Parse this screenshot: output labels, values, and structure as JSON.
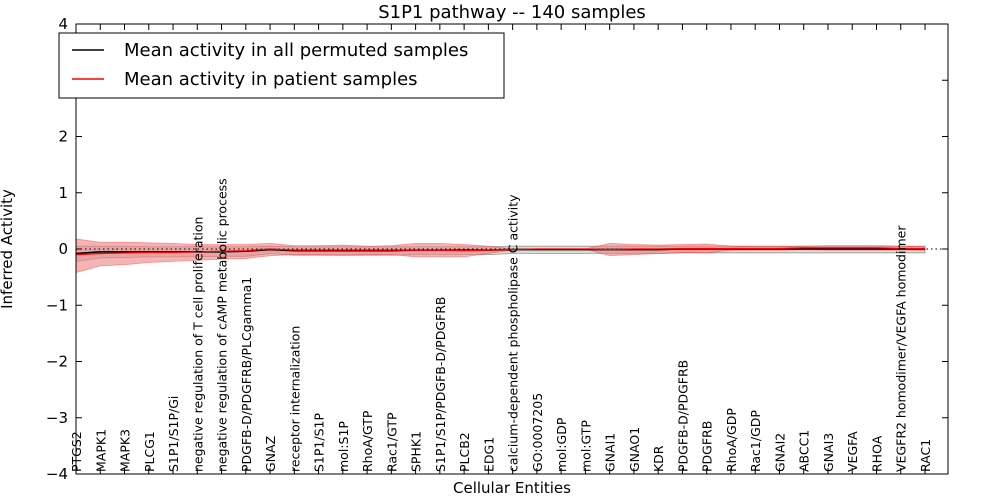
{
  "chart_data": {
    "type": "line",
    "title": "S1P1 pathway -- 140 samples",
    "xlabel": "Cellular Entities",
    "ylabel": "Inferred Activity",
    "ylim": [
      -4,
      4
    ],
    "yticks": [
      -4,
      -3,
      -2,
      -1,
      0,
      1,
      2,
      3,
      4
    ],
    "ytick_labels": [
      "−4",
      "−3",
      "−2",
      "−1",
      "0",
      "1",
      "2",
      "3",
      "4"
    ],
    "grid": false,
    "legend_position": "top-left",
    "categories": [
      "PTGS2",
      "MAPK1",
      "MAPK3",
      "PLCG1",
      "S1P1/S1P/Gi",
      "negative regulation of T cell proliferation",
      "negative regulation of cAMP metabolic process",
      "PDGFB-D/PDGFRB/PLCgamma1",
      "GNAZ",
      "receptor internalization",
      "S1P1/S1P",
      "mol:S1P",
      "RhoA/GTP",
      "Rac1/GTP",
      "SPHK1",
      "S1P1/S1P/PDGFB-D/PDGFRB",
      "PLCB2",
      "EDG1",
      "calcium-dependent phospholipase C activity",
      "GO:0007205",
      "mol:GDP",
      "mol:GTP",
      "GNAI1",
      "GNAO1",
      "KDR",
      "PDGFB-D/PDGFRB",
      "PDGFRB",
      "RhoA/GDP",
      "Rac1/GDP",
      "GNAI2",
      "ABCC1",
      "GNAI3",
      "VEGFA",
      "RHOA",
      "VEGFR2 homodimer/VEGFA homodimer",
      "RAC1"
    ],
    "series": [
      {
        "name": "Mean activity in all permuted samples",
        "color": "#000000",
        "band_color": "#bbbbbb",
        "values": [
          -0.08,
          -0.05,
          -0.05,
          -0.05,
          -0.05,
          -0.05,
          -0.05,
          -0.04,
          -0.01,
          -0.03,
          -0.03,
          -0.03,
          -0.03,
          -0.03,
          -0.02,
          -0.02,
          -0.02,
          -0.02,
          -0.01,
          -0.01,
          -0.01,
          -0.01,
          -0.01,
          -0.01,
          -0.01,
          0.0,
          0.0,
          0.0,
          0.0,
          0.0,
          0.0,
          0.0,
          0.0,
          0.0,
          0.0,
          0.0
        ],
        "upper": [
          0.05,
          0.05,
          0.05,
          0.04,
          0.04,
          0.04,
          0.04,
          0.04,
          0.05,
          0.04,
          0.04,
          0.04,
          0.04,
          0.04,
          0.04,
          0.04,
          0.04,
          0.04,
          0.05,
          0.05,
          0.05,
          0.05,
          0.05,
          0.05,
          0.05,
          0.05,
          0.05,
          0.05,
          0.05,
          0.05,
          0.05,
          0.05,
          0.05,
          0.05,
          0.05,
          0.05
        ],
        "lower": [
          -0.22,
          -0.16,
          -0.15,
          -0.14,
          -0.14,
          -0.14,
          -0.13,
          -0.13,
          -0.08,
          -0.11,
          -0.11,
          -0.11,
          -0.11,
          -0.11,
          -0.1,
          -0.1,
          -0.1,
          -0.1,
          -0.08,
          -0.08,
          -0.08,
          -0.08,
          -0.08,
          -0.08,
          -0.08,
          -0.07,
          -0.07,
          -0.07,
          -0.07,
          -0.07,
          -0.07,
          -0.07,
          -0.07,
          -0.07,
          -0.07,
          -0.07
        ]
      },
      {
        "name": "Mean activity in patient samples",
        "color": "#ff0000",
        "band_color": "#f08080",
        "values": [
          -0.1,
          -0.08,
          -0.07,
          -0.06,
          -0.06,
          -0.05,
          -0.04,
          -0.03,
          0.0,
          -0.02,
          -0.02,
          -0.02,
          -0.02,
          -0.02,
          -0.02,
          -0.02,
          -0.03,
          -0.02,
          -0.01,
          0.0,
          0.0,
          0.0,
          -0.01,
          0.0,
          0.0,
          0.01,
          0.01,
          0.01,
          0.01,
          0.01,
          0.02,
          0.02,
          0.02,
          0.02,
          0.01,
          0.01
        ],
        "upper": [
          0.18,
          0.12,
          0.12,
          0.11,
          0.1,
          0.08,
          0.08,
          0.08,
          0.1,
          0.06,
          0.06,
          0.07,
          0.05,
          0.06,
          0.1,
          0.1,
          0.08,
          0.05,
          0.0,
          0.0,
          0.0,
          0.0,
          0.1,
          0.08,
          0.07,
          0.08,
          0.09,
          0.05,
          0.04,
          0.04,
          0.05,
          0.06,
          0.06,
          0.06,
          0.05,
          0.04
        ],
        "lower": [
          -0.42,
          -0.3,
          -0.28,
          -0.24,
          -0.22,
          -0.2,
          -0.18,
          -0.17,
          -0.12,
          -0.1,
          -0.1,
          -0.11,
          -0.1,
          -0.1,
          -0.14,
          -0.14,
          -0.14,
          -0.08,
          -0.02,
          0.0,
          0.0,
          0.0,
          -0.12,
          -0.1,
          -0.08,
          -0.06,
          -0.07,
          -0.02,
          -0.02,
          -0.02,
          -0.01,
          -0.02,
          -0.02,
          -0.02,
          -0.02,
          -0.02
        ]
      }
    ]
  }
}
